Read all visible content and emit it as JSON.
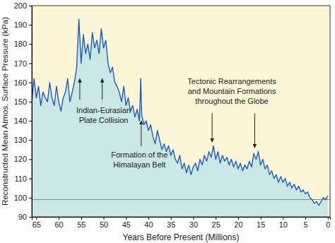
{
  "chart_data": {
    "type": "line",
    "xlabel": "Years Before Present (Millions)",
    "ylabel": "Reconstructed Mean Atmos. Surface Pressure (kPa)",
    "color": "#1f5cc2",
    "xlim": [
      66,
      -0.5
    ],
    "ylim": [
      90,
      200
    ],
    "xticks": [
      65,
      60,
      55,
      50,
      45,
      40,
      35,
      30,
      25,
      20,
      15,
      10,
      5,
      0
    ],
    "yticks": [
      90,
      100,
      110,
      120,
      130,
      140,
      150,
      160,
      170,
      180,
      190,
      200
    ],
    "reference_line": 99,
    "x": [
      66,
      65.5,
      65,
      64.5,
      64,
      63.5,
      63,
      62.5,
      62,
      61.5,
      61,
      60.5,
      60,
      59.5,
      59,
      58.5,
      58,
      57.5,
      57,
      56.5,
      56,
      55.5,
      55,
      54.5,
      54,
      53.5,
      53,
      52.5,
      52,
      51.5,
      51,
      50.5,
      50,
      49.5,
      49,
      48.5,
      48,
      47.5,
      47,
      46.5,
      46,
      45.5,
      45,
      44.5,
      44,
      43.5,
      43,
      42.5,
      42,
      41.7,
      41.5,
      41,
      40.5,
      40,
      39.5,
      39,
      38.5,
      38,
      37.5,
      37,
      36.5,
      36,
      35.5,
      35,
      34.5,
      34,
      33.5,
      33,
      32.5,
      32,
      31.5,
      31,
      30.5,
      30,
      29.5,
      29,
      28.5,
      28,
      27.5,
      27,
      26.5,
      26,
      25.5,
      25,
      24.5,
      24,
      23.5,
      23,
      22.5,
      22,
      21.5,
      21,
      20.5,
      20,
      19.5,
      19,
      18.5,
      18,
      17.5,
      17,
      16.5,
      16,
      15.5,
      15,
      14.5,
      14,
      13.5,
      13,
      12.5,
      12,
      11.5,
      11,
      10.5,
      10,
      9.5,
      9,
      8.5,
      8,
      7.5,
      7,
      6.5,
      6,
      5.5,
      5,
      4.5,
      4,
      3.5,
      3,
      2.5,
      2,
      1.5,
      1,
      0.5,
      0
    ],
    "values": [
      150,
      162,
      152,
      158,
      148,
      155,
      152,
      150,
      160,
      152,
      148,
      158,
      150,
      145,
      152,
      155,
      162,
      150,
      155,
      160,
      168,
      193,
      170,
      185,
      175,
      180,
      172,
      186,
      178,
      182,
      175,
      188,
      178,
      182,
      170,
      165,
      168,
      160,
      158,
      155,
      150,
      158,
      148,
      152,
      145,
      148,
      142,
      146,
      140,
      162,
      143,
      138,
      140,
      135,
      138,
      132,
      128,
      135,
      130,
      125,
      128,
      124,
      127,
      122,
      125,
      120,
      118,
      122,
      115,
      118,
      113,
      117,
      112,
      116,
      118,
      114,
      120,
      117,
      122,
      119,
      124,
      121,
      127,
      120,
      124,
      118,
      122,
      119,
      121,
      117,
      120,
      116,
      119,
      115,
      118,
      114,
      117,
      115,
      119,
      116,
      123,
      120,
      124,
      117,
      120,
      115,
      117,
      112,
      114,
      110,
      112,
      108,
      111,
      108,
      110,
      106,
      108,
      105,
      107,
      104,
      106,
      103,
      104,
      102,
      103,
      100,
      99,
      97,
      98,
      96,
      98,
      100,
      99,
      101
    ],
    "annotations": [
      {
        "text": [
          "Indian-Eurasian",
          "Plate Collision"
        ],
        "x": 50,
        "y": 144,
        "arrows": [
          [
            55.3,
            151,
            55.3,
            162
          ],
          [
            50.3,
            151,
            50.3,
            162
          ]
        ]
      },
      {
        "text": [
          "Formation of the",
          "Himalayan Belt"
        ],
        "x": 42,
        "y": 121,
        "arrows": [
          [
            41.6,
            127,
            41.6,
            140
          ]
        ]
      },
      {
        "text": [
          "Tectonic Rearrangements",
          "and Mountain Formations",
          "throughout the Globe"
        ],
        "x": 21.4,
        "y": 159,
        "arrows": [
          [
            25.8,
            144,
            25.8,
            129
          ],
          [
            16.3,
            144,
            16.3,
            126
          ]
        ]
      }
    ]
  }
}
